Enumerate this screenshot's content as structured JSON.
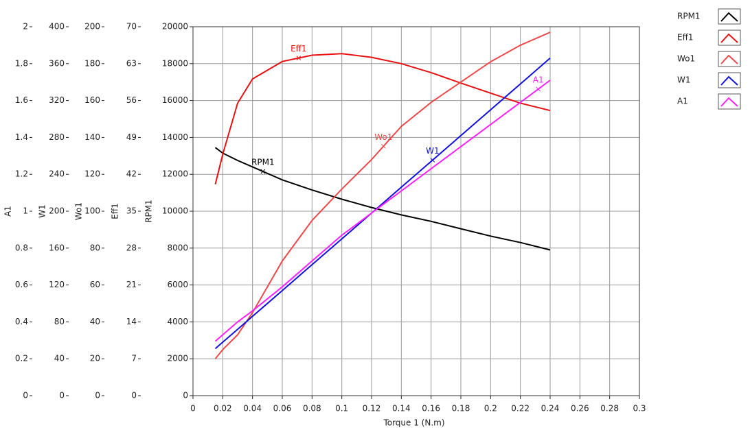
{
  "chart_data": {
    "type": "line",
    "xlabel": "Torque 1 (N.m)",
    "x": [
      0.015,
      0.02,
      0.03,
      0.04,
      0.06,
      0.08,
      0.1,
      0.12,
      0.14,
      0.16,
      0.18,
      0.2,
      0.22,
      0.24
    ],
    "xlim": [
      0,
      0.3
    ],
    "xticks": [
      0,
      0.02,
      0.04,
      0.06,
      0.08,
      0.1,
      0.12,
      0.14,
      0.16,
      0.18,
      0.2,
      0.22,
      0.24,
      0.26,
      0.28,
      0.3
    ],
    "ylim": [
      0,
      20000
    ],
    "yticks": [
      0,
      2000,
      4000,
      6000,
      8000,
      10000,
      12000,
      14000,
      16000,
      18000,
      20000
    ],
    "grid": true,
    "axes": [
      {
        "label": "A1",
        "ylim": [
          0,
          2
        ],
        "yticks": [
          0,
          0.2,
          0.4,
          0.6,
          0.8,
          1,
          1.2,
          1.4,
          1.6,
          1.8,
          2
        ]
      },
      {
        "label": "W1",
        "ylim": [
          0,
          400
        ],
        "yticks": [
          0,
          40,
          80,
          120,
          160,
          200,
          240,
          280,
          320,
          360,
          400
        ]
      },
      {
        "label": "Wo1",
        "ylim": [
          0,
          200
        ],
        "yticks": [
          0,
          20,
          40,
          60,
          80,
          100,
          120,
          140,
          160,
          180,
          200
        ]
      },
      {
        "label": "Eff1",
        "ylim": [
          0,
          70
        ],
        "yticks": [
          0,
          7,
          14,
          21,
          28,
          35,
          42,
          49,
          56,
          63,
          70
        ]
      },
      {
        "label": "RPM1"
      }
    ],
    "series": [
      {
        "name": "RPM1",
        "color": "#000000",
        "axis": 4,
        "values": [
          13450,
          13150,
          12750,
          12400,
          11700,
          11150,
          10650,
          10200,
          9800,
          9450,
          9050,
          8650,
          8300,
          7900
        ]
      },
      {
        "name": "Eff1",
        "color": "#e81010",
        "axis": 3,
        "values": [
          40.1,
          45.8,
          55.5,
          60.1,
          63.4,
          64.6,
          64.9,
          64.2,
          63,
          61.3,
          59.3,
          57.4,
          55.5,
          54.1
        ]
      },
      {
        "name": "Wo1",
        "color": "#f04848",
        "axis": 2,
        "values": [
          20,
          25,
          33,
          45,
          73,
          95,
          112,
          128,
          146,
          159,
          170,
          181,
          190,
          197
        ]
      },
      {
        "name": "W1",
        "color": "#1010e0",
        "axis": 1,
        "values": [
          51,
          58,
          72,
          86,
          114,
          142,
          170,
          198,
          226,
          254,
          282,
          310,
          338,
          366
        ]
      },
      {
        "name": "A1",
        "color": "#ff20ff",
        "axis": 0,
        "values": [
          0.295,
          0.33,
          0.4,
          0.46,
          0.59,
          0.73,
          0.87,
          0.99,
          1.11,
          1.23,
          1.35,
          1.47,
          1.59,
          1.71
        ]
      }
    ]
  }
}
